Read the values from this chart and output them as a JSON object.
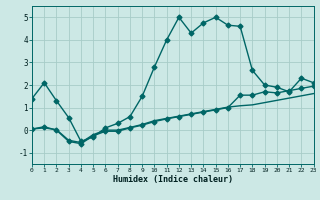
{
  "xlabel": "Humidex (Indice chaleur)",
  "xlim": [
    0,
    23
  ],
  "ylim": [
    -1.5,
    5.5
  ],
  "yticks": [
    -1,
    0,
    1,
    2,
    3,
    4,
    5
  ],
  "xticks": [
    0,
    1,
    2,
    3,
    4,
    5,
    6,
    7,
    8,
    9,
    10,
    11,
    12,
    13,
    14,
    15,
    16,
    17,
    18,
    19,
    20,
    21,
    22,
    23
  ],
  "background_color": "#cce8e5",
  "grid_color": "#a8ccc8",
  "line_color": "#006666",
  "line1_x": [
    0,
    1,
    2,
    3,
    4,
    5,
    6,
    7,
    8,
    9,
    10,
    11,
    12,
    13,
    14,
    15,
    16,
    17,
    18,
    19,
    20,
    21,
    22,
    23
  ],
  "line1_y": [
    1.4,
    2.1,
    1.3,
    0.55,
    -0.5,
    -0.3,
    0.1,
    0.3,
    0.6,
    1.5,
    2.8,
    4.0,
    5.0,
    4.3,
    4.75,
    5.0,
    4.65,
    4.6,
    2.65,
    2.0,
    1.9,
    1.7,
    2.3,
    2.1
  ],
  "line2_x": [
    0,
    1,
    2,
    3,
    4,
    5,
    6,
    7,
    8,
    9,
    10,
    11,
    12,
    13,
    14,
    15,
    16,
    17,
    18,
    19,
    20,
    21,
    22,
    23
  ],
  "line2_y": [
    0.05,
    0.15,
    0.0,
    -0.5,
    -0.6,
    -0.25,
    -0.05,
    -0.05,
    0.1,
    0.22,
    0.38,
    0.5,
    0.6,
    0.7,
    0.8,
    0.9,
    1.0,
    1.55,
    1.55,
    1.7,
    1.65,
    1.75,
    1.85,
    1.95
  ],
  "line3_x": [
    0,
    1,
    2,
    3,
    4,
    5,
    6,
    7,
    8,
    9,
    10,
    11,
    12,
    13,
    14,
    15,
    16,
    17,
    18,
    19,
    20,
    21,
    22,
    23
  ],
  "line3_y": [
    0.05,
    0.1,
    0.02,
    -0.45,
    -0.55,
    -0.2,
    0.0,
    0.0,
    0.12,
    0.25,
    0.42,
    0.52,
    0.62,
    0.72,
    0.82,
    0.92,
    1.02,
    1.08,
    1.12,
    1.22,
    1.32,
    1.42,
    1.52,
    1.62
  ],
  "linewidth": 1.0,
  "markersize": 2.5
}
